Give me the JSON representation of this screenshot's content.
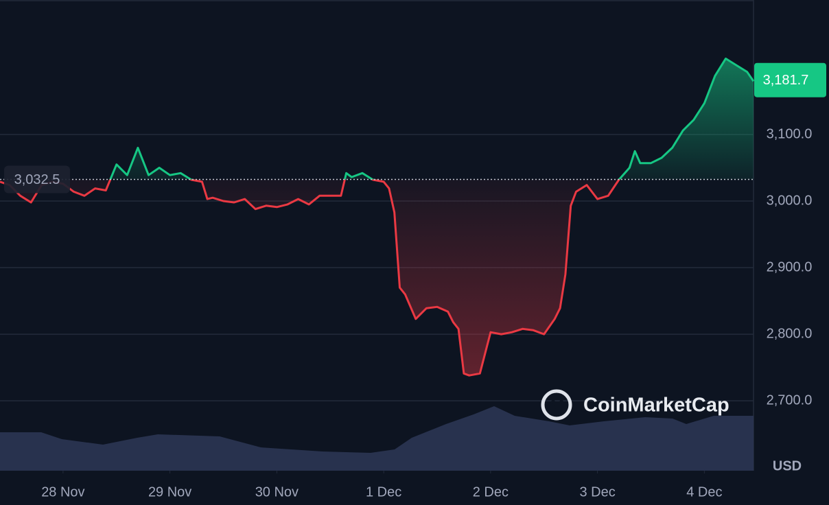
{
  "chart_data": {
    "type": "line",
    "currency": "USD",
    "watermark": "CoinMarketCap",
    "x": [
      -0.59,
      -0.5,
      -0.4,
      -0.3,
      -0.2,
      -0.1,
      0,
      0.1,
      0.2,
      0.3,
      0.4,
      0.5,
      0.6,
      0.7,
      0.8,
      0.9,
      1,
      1.1,
      1.2,
      1.3,
      1.35,
      1.4,
      1.5,
      1.6,
      1.7,
      1.8,
      1.9,
      2,
      2.1,
      2.2,
      2.3,
      2.4,
      2.5,
      2.6,
      2.65,
      2.7,
      2.8,
      2.9,
      3,
      3.05,
      3.1,
      3.15,
      3.2,
      3.3,
      3.4,
      3.5,
      3.6,
      3.65,
      3.7,
      3.75,
      3.8,
      3.9,
      4,
      4.1,
      4.2,
      4.3,
      4.4,
      4.5,
      4.6,
      4.65,
      4.7,
      4.75,
      4.8,
      4.9,
      5,
      5.1,
      5.2,
      5.3,
      5.35,
      5.4,
      5.5,
      5.6,
      5.7,
      5.8,
      5.9,
      6,
      6.1,
      6.2,
      6.3,
      6.4,
      6.46
    ],
    "values": [
      3029,
      3024,
      3008,
      2998,
      3024,
      3029,
      3026,
      3014,
      3008,
      3019,
      3016,
      3055,
      3039,
      3080,
      3039,
      3050,
      3039,
      3042,
      3032,
      3029,
      3003,
      3005,
      3000,
      2998,
      3003,
      2988,
      2993,
      2991,
      2995,
      3003,
      2995,
      3008,
      3008,
      3008,
      3042,
      3036,
      3042,
      3032,
      3029,
      3019,
      2983,
      2870,
      2860,
      2823,
      2839,
      2841,
      2834,
      2818,
      2808,
      2741,
      2738,
      2741,
      2803,
      2800,
      2803,
      2808,
      2806,
      2800,
      2823,
      2839,
      2890,
      2993,
      3014,
      3024,
      3003,
      3008,
      3032,
      3050,
      3075,
      3057,
      3057,
      3065,
      3080,
      3106,
      3122,
      3147,
      3188,
      3214,
      3204,
      3194,
      3180
    ],
    "up_color": "#16c784",
    "down_color": "#ea3943",
    "baseline": {
      "value": 3032.5,
      "label": "3,032.5"
    },
    "last_price": {
      "value": 3181.7,
      "label": "3,181.7"
    },
    "xlim": [
      -0.59,
      6.46
    ],
    "xticks": [
      {
        "value": 0,
        "label": "28 Nov"
      },
      {
        "value": 1,
        "label": "29 Nov"
      },
      {
        "value": 2,
        "label": "30 Nov"
      },
      {
        "value": 3,
        "label": "1 Dec"
      },
      {
        "value": 4,
        "label": "2 Dec"
      },
      {
        "value": 5,
        "label": "3 Dec"
      },
      {
        "value": 6,
        "label": "4 Dec"
      }
    ],
    "ylim": [
      2595,
      3302
    ],
    "yticks": [
      {
        "value": 2700,
        "label": "2,700.0"
      },
      {
        "value": 2800,
        "label": "2,800.0"
      },
      {
        "value": 2900,
        "label": "2,900.0"
      },
      {
        "value": 3000,
        "label": "3,000.0"
      },
      {
        "value": 3100,
        "label": "3,100.0"
      }
    ],
    "grid": true
  }
}
